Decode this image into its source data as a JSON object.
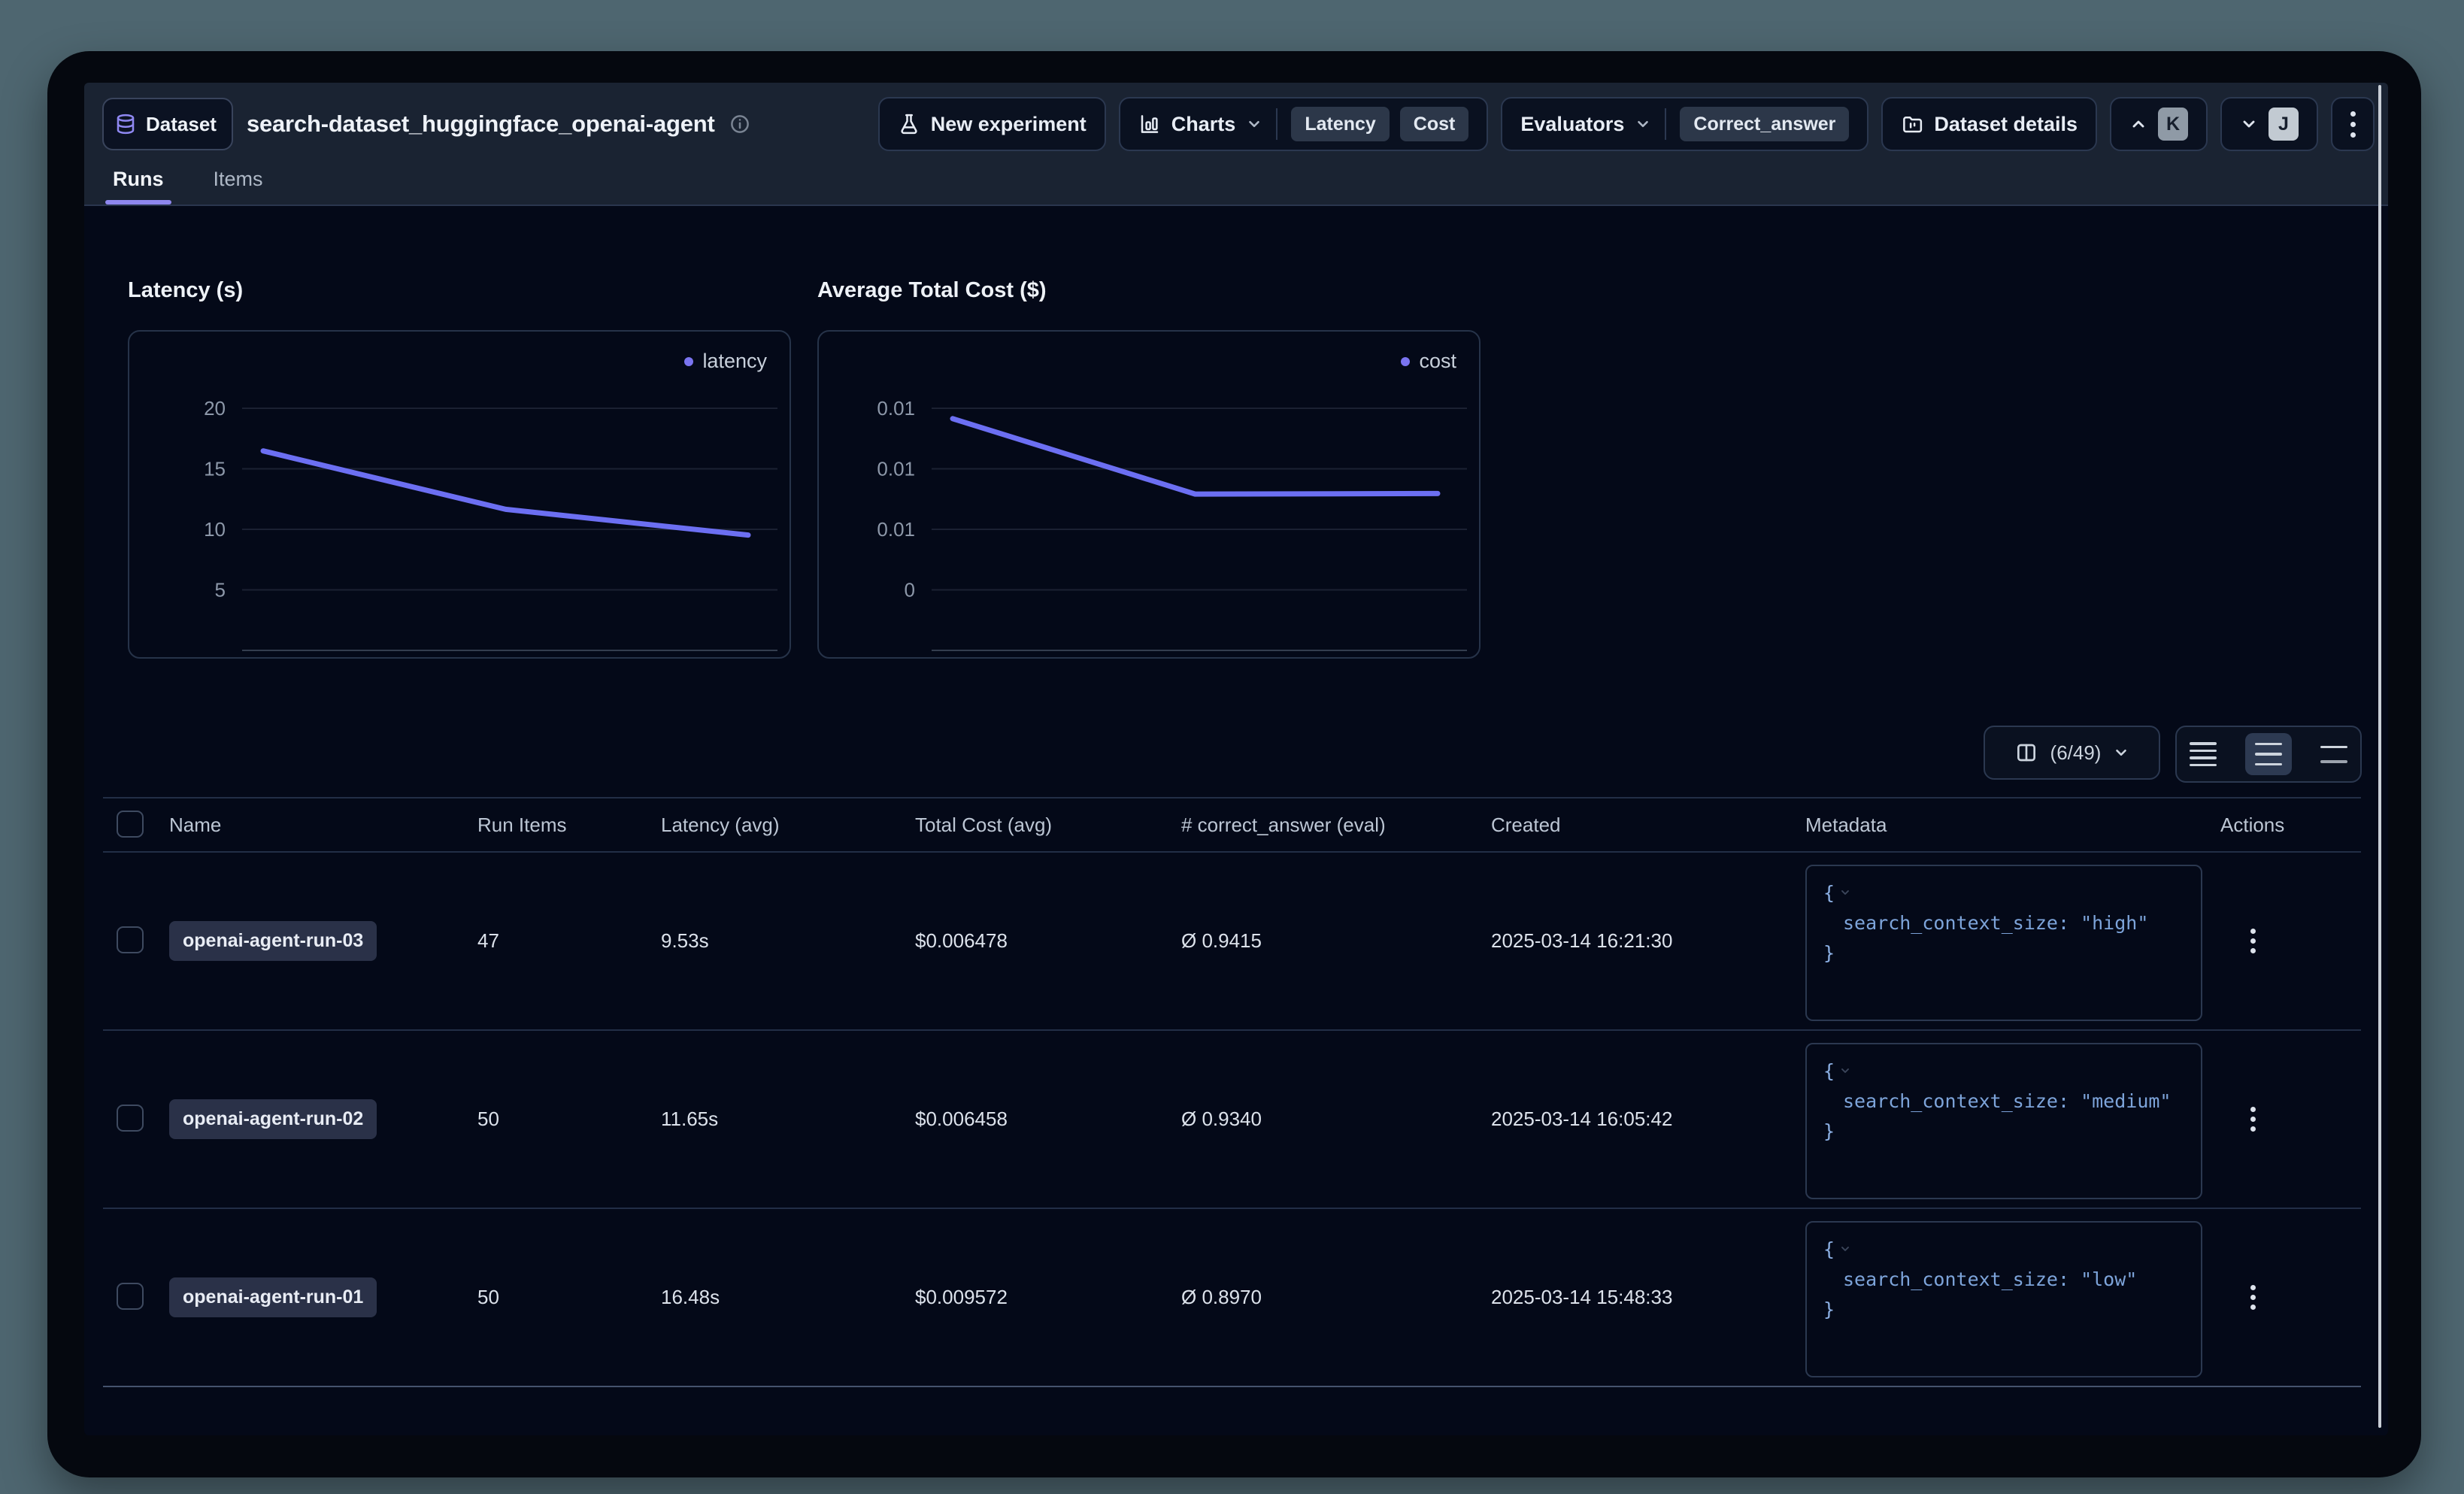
{
  "colors": {
    "page_bg": "#4e6670",
    "header_bg": "#1a2332",
    "content_bg": "#040918",
    "accent_purple": "#8e87ee",
    "line_purple": "#6c6ff2",
    "json_text_blue": "#7da4da"
  },
  "icons": {
    "database": "db-cylinder",
    "info": "circled-i",
    "flask": "flask-conical",
    "bar_chart": "column-chart",
    "folder": "folder-kanban",
    "chevron_down": "v",
    "chevron_up": "^",
    "kebab": "vertical-dots",
    "columns": "split-panel",
    "row_height_small": "4-lines",
    "row_height_medium": "3-lines",
    "row_height_large": "2-lines"
  },
  "header": {
    "badge_label": "Dataset",
    "title": "search-dataset_huggingface_openai-agent",
    "actions": {
      "new_experiment_label": "New experiment",
      "charts_label": "Charts",
      "charts_pills": [
        "Latency",
        "Cost"
      ],
      "evaluators_label": "Evaluators",
      "evaluators_pills": [
        "Correct_answer"
      ],
      "dataset_details_label": "Dataset details",
      "prev_shortcut": "K",
      "next_shortcut": "J"
    },
    "tabs": [
      {
        "label": "Runs",
        "active": true
      },
      {
        "label": "Items",
        "active": false
      }
    ]
  },
  "chart_data": [
    {
      "type": "line",
      "title": "Latency (s)",
      "legend_position": "top-right",
      "series": [
        {
          "name": "latency",
          "values": [
            16.48,
            11.65,
            9.53
          ]
        }
      ],
      "x_labels": [],
      "ylim": [
        0,
        25
      ],
      "yticks": [
        {
          "value": 20,
          "label": "20"
        },
        {
          "value": 15,
          "label": "15"
        },
        {
          "value": 10,
          "label": "10"
        },
        {
          "value": 5,
          "label": "5"
        }
      ],
      "baseline": 0,
      "grid": true,
      "line_color": "#6c6ff2"
    },
    {
      "type": "line",
      "title": "Average Total Cost ($)",
      "legend_position": "top-right",
      "series": [
        {
          "name": "cost",
          "values": [
            0.009572,
            0.006458,
            0.006478
          ]
        }
      ],
      "x_labels": [],
      "ylim": [
        0,
        0.0125
      ],
      "yticks": [
        {
          "value": 0.01,
          "label": "0.01"
        },
        {
          "value": 0.0075,
          "label": "0.01"
        },
        {
          "value": 0.005,
          "label": "0.01"
        },
        {
          "value": 0.0025,
          "label": "0"
        }
      ],
      "baseline": 0,
      "grid": true,
      "line_color": "#6c6ff2"
    }
  ],
  "table_controls": {
    "column_selector_label": "(6/49)"
  },
  "table": {
    "columns": [
      "Name",
      "Run Items",
      "Latency (avg)",
      "Total Cost (avg)",
      "# correct_answer (eval)",
      "Created",
      "Metadata",
      "Actions"
    ],
    "metadata_brace_open": "{",
    "metadata_brace_close": "}",
    "rows": [
      {
        "name": "openai-agent-run-03",
        "run_items": "47",
        "latency_avg": "9.53s",
        "total_cost_avg": "$0.006478",
        "correct_answer": "Ø 0.9415",
        "created": "2025-03-14 16:21:30",
        "metadata": "search_context_size: \"high\""
      },
      {
        "name": "openai-agent-run-02",
        "run_items": "50",
        "latency_avg": "11.65s",
        "total_cost_avg": "$0.006458",
        "correct_answer": "Ø 0.9340",
        "created": "2025-03-14 16:05:42",
        "metadata": "search_context_size: \"medium\""
      },
      {
        "name": "openai-agent-run-01",
        "run_items": "50",
        "latency_avg": "16.48s",
        "total_cost_avg": "$0.009572",
        "correct_answer": "Ø 0.8970",
        "created": "2025-03-14 15:48:33",
        "metadata": "search_context_size: \"low\""
      }
    ]
  }
}
